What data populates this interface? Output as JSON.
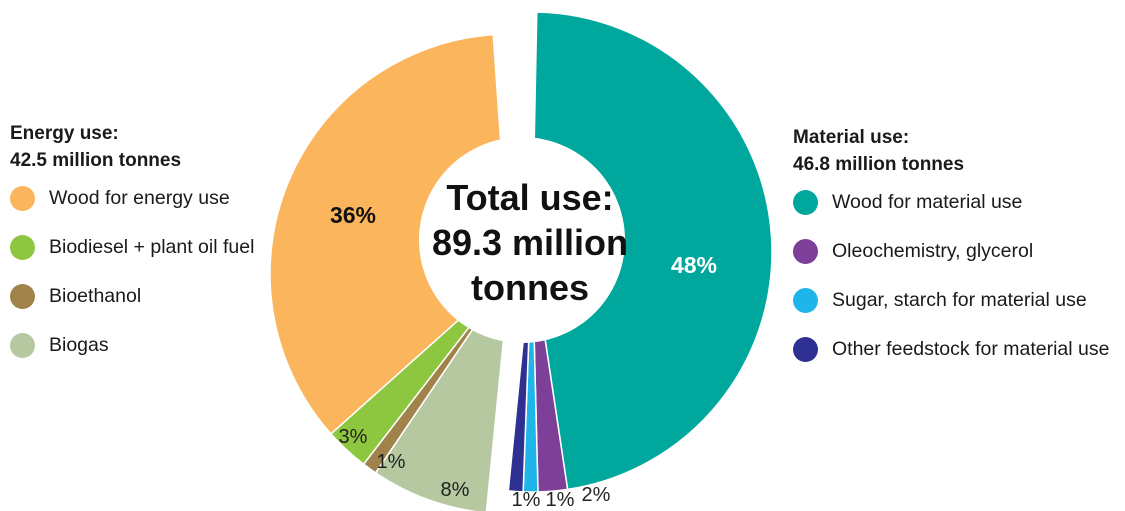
{
  "chart_data": {
    "type": "pie",
    "center_text": [
      "Total use:",
      "89.3 million",
      "tonnes"
    ],
    "groups": [
      {
        "title_line1": "Energy use:",
        "title_line2": "42.5 million tonnes",
        "items": [
          {
            "label": "Wood for energy use",
            "value": 36,
            "pct_label": "36%",
            "color": "#FBB55D"
          },
          {
            "label": "Biodiesel + plant oil fuel",
            "value": 3,
            "pct_label": "3%",
            "color": "#8DC63F"
          },
          {
            "label": "Bioethanol",
            "value": 1,
            "pct_label": "1%",
            "color": "#A0834A"
          },
          {
            "label": "Biogas",
            "value": 8,
            "pct_label": "8%",
            "color": "#B5C8A0"
          }
        ]
      },
      {
        "title_line1": "Material use:",
        "title_line2": "46.8 million tonnes",
        "items": [
          {
            "label": "Wood for material use",
            "value": 48,
            "pct_label": "48%",
            "color": "#00A79D"
          },
          {
            "label": "Oleochemistry, glycerol",
            "value": 2,
            "pct_label": "2%",
            "color": "#7D3F98"
          },
          {
            "label": "Sugar, starch for material use",
            "value": 1,
            "pct_label": "1%",
            "color": "#1FB5EA"
          },
          {
            "label": "Other feedstock for material use",
            "value": 1,
            "pct_label": "1%",
            "color": "#2E3192"
          }
        ]
      }
    ]
  }
}
